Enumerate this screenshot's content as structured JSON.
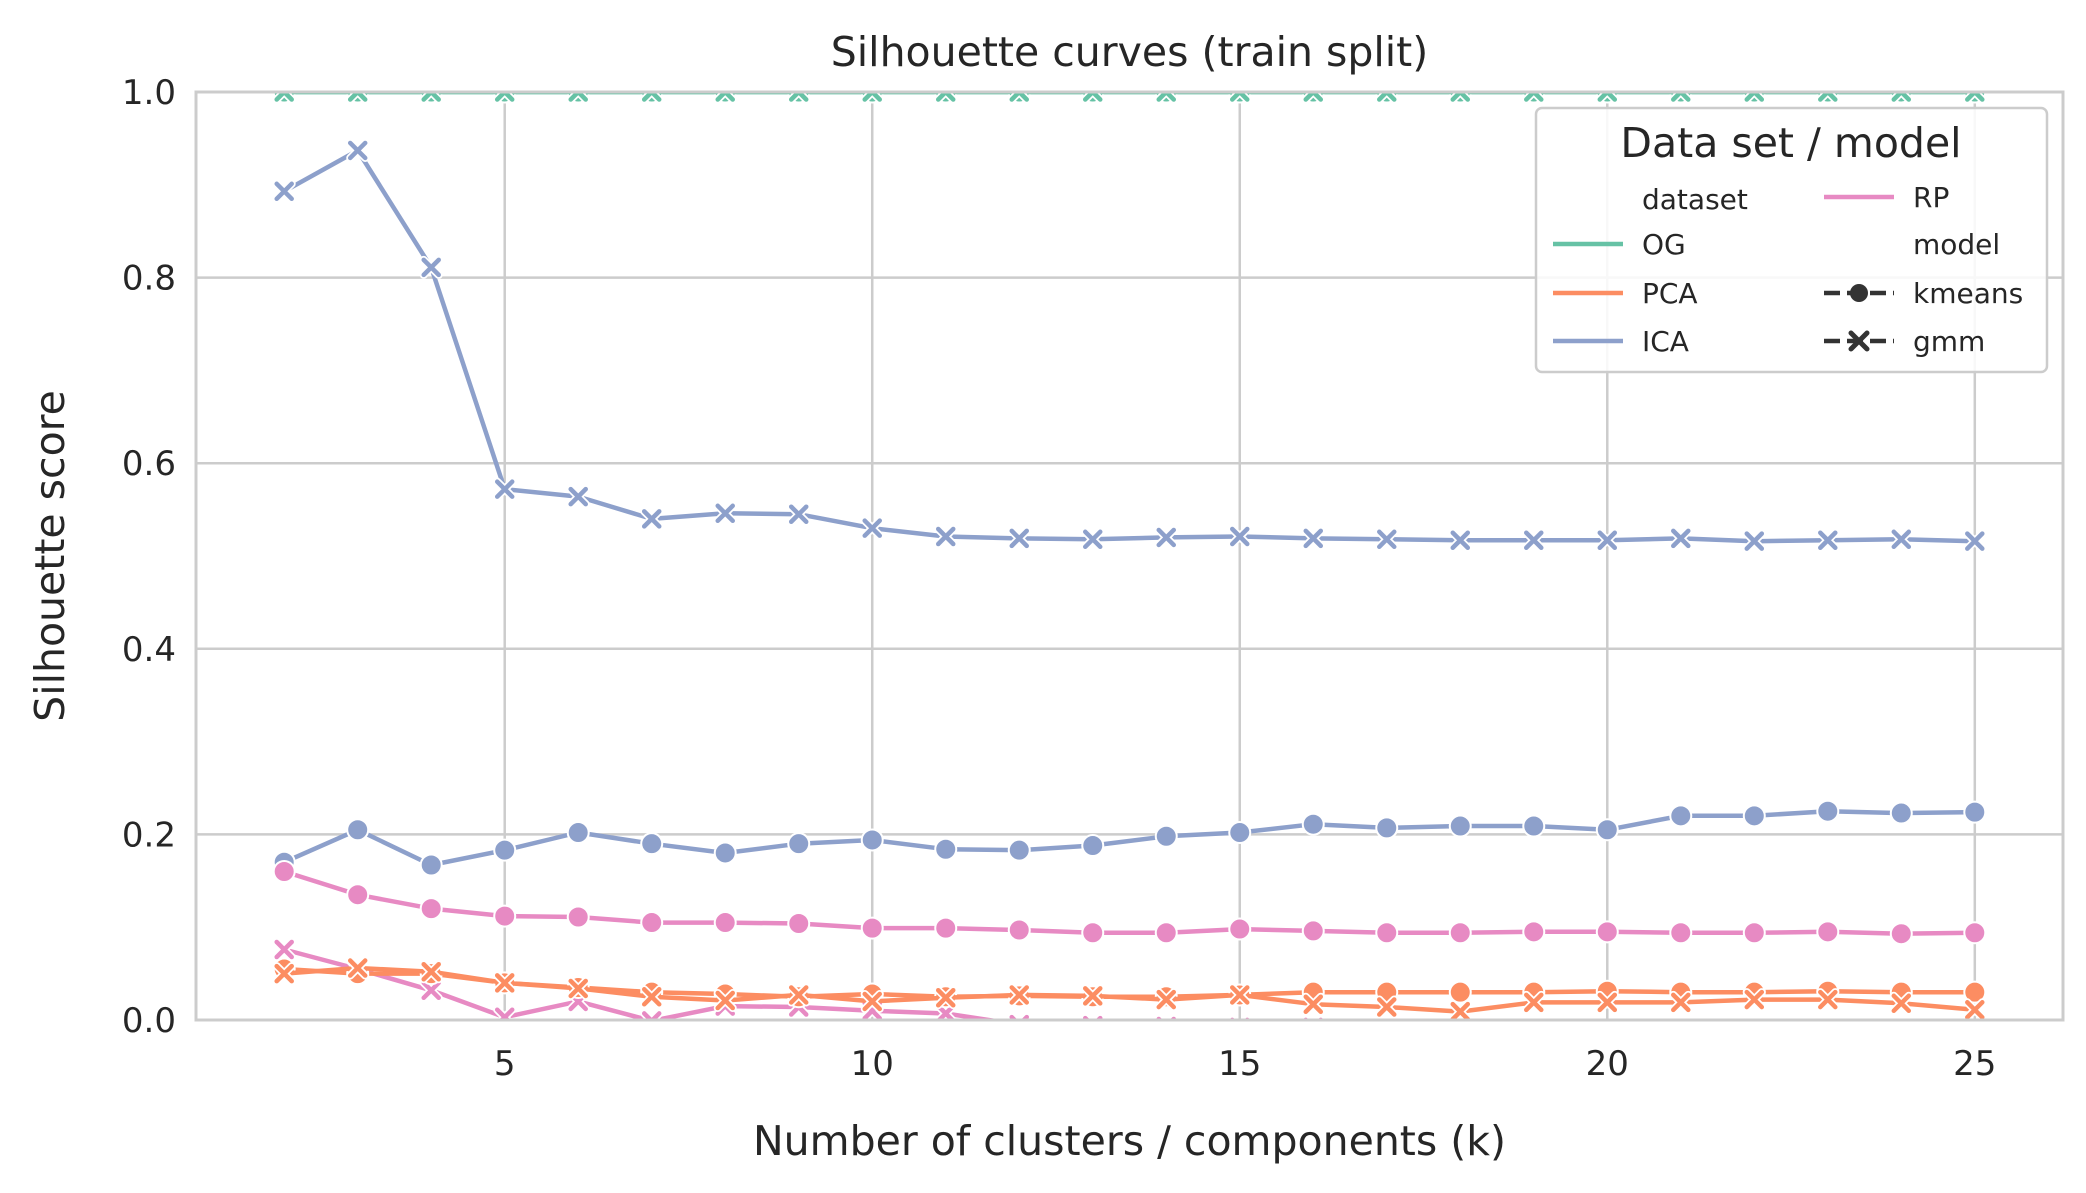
{
  "chart_data": {
    "type": "line",
    "title": "Silhouette curves (train split)",
    "xlabel": "Number of clusters / components (k)",
    "ylabel": "Silhouette score",
    "xlim": [
      0.8,
      26.2
    ],
    "ylim": [
      0.0,
      1.0
    ],
    "xticks": [
      5,
      10,
      15,
      20,
      25
    ],
    "yticks": [
      0.0,
      0.2,
      0.4,
      0.6,
      0.8,
      1.0
    ],
    "grid": true,
    "legend": {
      "title": "Data set / model",
      "placement": "top-right",
      "hue_header": "dataset",
      "style_header": "model",
      "datasets": [
        {
          "label": "OG",
          "color": "#66c2a5"
        },
        {
          "label": "PCA",
          "color": "#fc8d62"
        },
        {
          "label": "ICA",
          "color": "#8da0cb"
        },
        {
          "label": "RP",
          "color": "#e78ac3"
        }
      ],
      "models": [
        {
          "label": "kmeans",
          "marker": "circle"
        },
        {
          "label": "gmm",
          "marker": "x"
        }
      ]
    },
    "x": [
      2,
      3,
      4,
      5,
      6,
      7,
      8,
      9,
      10,
      11,
      12,
      13,
      14,
      15,
      16,
      17,
      18,
      19,
      20,
      21,
      22,
      23,
      24,
      25
    ],
    "series": [
      {
        "name": "OG",
        "model": "kmeans",
        "color": "#66c2a5",
        "marker": "circle",
        "values": [
          1.0,
          1.0,
          1.0,
          1.0,
          1.0,
          1.0,
          1.0,
          1.0,
          1.0,
          1.0,
          1.0,
          1.0,
          1.0,
          1.0,
          1.0,
          1.0,
          1.0,
          1.0,
          1.0,
          1.0,
          1.0,
          1.0,
          1.0,
          1.0
        ]
      },
      {
        "name": "OG",
        "model": "gmm",
        "color": "#66c2a5",
        "marker": "x",
        "values": [
          1.0,
          1.0,
          1.0,
          1.0,
          1.0,
          1.0,
          1.0,
          1.0,
          1.0,
          1.0,
          1.0,
          1.0,
          1.0,
          1.0,
          1.0,
          1.0,
          1.0,
          1.0,
          1.0,
          1.0,
          1.0,
          1.0,
          1.0,
          1.0
        ]
      },
      {
        "name": "ICA",
        "model": "gmm",
        "color": "#8da0cb",
        "marker": "x",
        "values": [
          0.893,
          0.937,
          0.811,
          0.572,
          0.564,
          0.54,
          0.546,
          0.545,
          0.53,
          0.521,
          0.519,
          0.518,
          0.52,
          0.521,
          0.519,
          0.518,
          0.517,
          0.517,
          0.517,
          0.519,
          0.516,
          0.517,
          0.518,
          0.516
        ]
      },
      {
        "name": "ICA",
        "model": "kmeans",
        "color": "#8da0cb",
        "marker": "circle",
        "values": [
          0.17,
          0.205,
          0.167,
          0.183,
          0.202,
          0.19,
          0.18,
          0.19,
          0.194,
          0.184,
          0.183,
          0.188,
          0.198,
          0.202,
          0.211,
          0.207,
          0.209,
          0.209,
          0.205,
          0.22,
          0.22,
          0.225,
          0.223,
          0.224
        ]
      },
      {
        "name": "RP",
        "model": "kmeans",
        "color": "#e78ac3",
        "marker": "circle",
        "values": [
          0.16,
          0.135,
          0.12,
          0.112,
          0.111,
          0.105,
          0.105,
          0.104,
          0.099,
          0.099,
          0.097,
          0.094,
          0.094,
          0.098,
          0.096,
          0.094,
          0.094,
          0.095,
          0.095,
          0.094,
          0.094,
          0.095,
          0.093,
          0.094
        ]
      },
      {
        "name": "RP",
        "model": "gmm",
        "color": "#e78ac3",
        "marker": "x",
        "values": [
          0.076,
          0.055,
          0.032,
          0.003,
          0.02,
          -0.001,
          0.015,
          0.014,
          0.01,
          0.007,
          -0.005,
          -0.006,
          -0.007,
          -0.008,
          -0.008,
          -0.009,
          -0.009,
          -0.01,
          -0.01,
          -0.01,
          -0.011,
          -0.011,
          -0.012,
          -0.012
        ]
      },
      {
        "name": "PCA",
        "model": "kmeans",
        "color": "#fc8d62",
        "marker": "circle",
        "values": [
          0.055,
          0.05,
          0.05,
          0.04,
          0.035,
          0.03,
          0.028,
          0.025,
          0.028,
          0.025,
          0.026,
          0.025,
          0.025,
          0.027,
          0.03,
          0.03,
          0.03,
          0.03,
          0.031,
          0.03,
          0.03,
          0.031,
          0.03,
          0.03
        ]
      },
      {
        "name": "PCA",
        "model": "gmm",
        "color": "#fc8d62",
        "marker": "x",
        "values": [
          0.05,
          0.056,
          0.052,
          0.04,
          0.034,
          0.025,
          0.021,
          0.027,
          0.02,
          0.024,
          0.027,
          0.026,
          0.022,
          0.027,
          0.017,
          0.014,
          0.009,
          0.019,
          0.019,
          0.019,
          0.022,
          0.022,
          0.018,
          0.011
        ]
      }
    ]
  }
}
